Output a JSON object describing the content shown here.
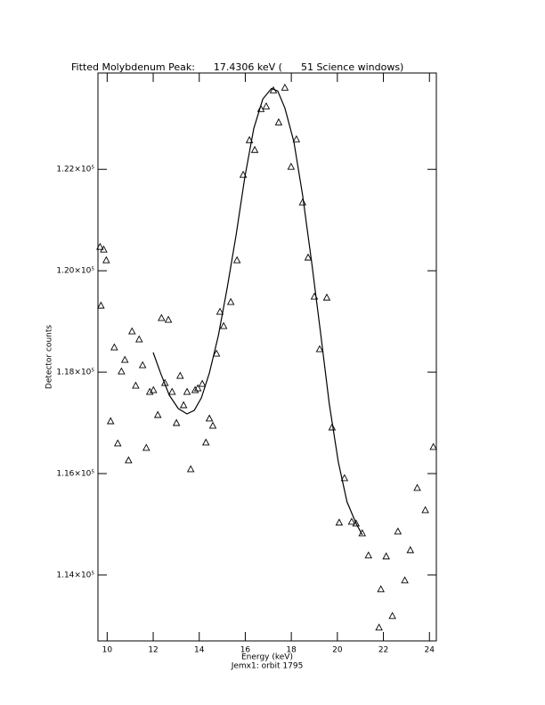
{
  "chart_data": {
    "type": "scatter",
    "title": "Fitted Molybdenum Peak:      17.4306 keV (      51 Science windows)",
    "x_label": "Energy (keV)",
    "subtitle": "Jemx1: orbit 1795",
    "y_label": "Detector counts",
    "xlim": [
      9.6,
      24.3
    ],
    "ylim": [
      112700,
      123900
    ],
    "xticks": [
      10,
      12,
      14,
      16,
      18,
      20,
      22,
      24
    ],
    "yticks": [
      {
        "value": 114000,
        "label": "1.14×10⁵"
      },
      {
        "value": 116000,
        "label": "1.16×10⁵"
      },
      {
        "value": 118000,
        "label": "1.18×10⁵"
      },
      {
        "value": 120000,
        "label": "1.20×10⁵"
      },
      {
        "value": 122000,
        "label": "1.22×10⁵"
      }
    ],
    "color": "#000000",
    "series": [
      {
        "style": "triangle",
        "x": [
          9.69,
          9.85,
          9.96,
          9.73,
          10.15,
          10.31,
          10.46,
          10.62,
          10.77,
          10.93,
          11.08,
          11.24,
          11.39,
          11.54,
          11.7,
          11.85,
          12.01,
          12.2,
          12.36,
          12.51,
          12.66,
          12.82,
          13.01,
          13.17,
          13.32,
          13.47,
          13.63,
          13.82,
          13.94,
          14.13,
          14.29,
          14.44,
          14.59,
          14.75,
          14.9,
          15.06,
          15.37,
          15.64,
          15.91,
          16.18,
          16.41,
          16.68,
          16.91,
          17.22,
          17.45,
          17.72,
          17.99,
          18.22,
          18.49,
          18.73,
          19.0,
          19.23,
          19.54,
          19.77,
          20.08,
          20.31,
          20.62,
          20.81,
          21.08,
          21.35,
          21.81,
          21.89,
          22.12,
          22.39,
          22.63,
          22.93,
          23.17,
          23.47,
          23.82,
          24.17
        ],
        "values": [
          120474,
          120421,
          120211,
          119316,
          117036,
          118492,
          116598,
          118018,
          118246,
          116264,
          118808,
          117738,
          118650,
          118141,
          116510,
          117615,
          117650,
          117159,
          119071,
          117790,
          119036,
          117615,
          117001,
          117931,
          117352,
          117615,
          116089,
          117650,
          117685,
          117773,
          116615,
          117089,
          116948,
          118369,
          119194,
          118913,
          119387,
          120211,
          121895,
          122579,
          122386,
          123193,
          123245,
          123561,
          122930,
          123614,
          122053,
          122596,
          121351,
          120264,
          119492,
          118457,
          119474,
          116913,
          115037,
          115914,
          115054,
          115019,
          114826,
          114388,
          112967,
          113721,
          114370,
          113195,
          114861,
          113897,
          114493,
          115721,
          115282,
          116528
        ]
      },
      {
        "style": "line",
        "x": [
          12.0,
          12.32,
          12.7,
          13.09,
          13.47,
          13.78,
          14.09,
          14.44,
          14.83,
          15.21,
          15.6,
          15.98,
          16.37,
          16.76,
          17.14,
          17.41,
          17.72,
          18.11,
          18.49,
          18.88,
          19.27,
          19.65,
          20.04,
          20.42,
          20.81,
          21.08
        ],
        "values": [
          118387,
          117983,
          117545,
          117282,
          117176,
          117247,
          117492,
          117983,
          118720,
          119650,
          120702,
          121842,
          122807,
          123386,
          123596,
          123544,
          123210,
          122544,
          121491,
          120176,
          118773,
          117369,
          116229,
          115440,
          115019,
          114791
        ]
      }
    ]
  }
}
